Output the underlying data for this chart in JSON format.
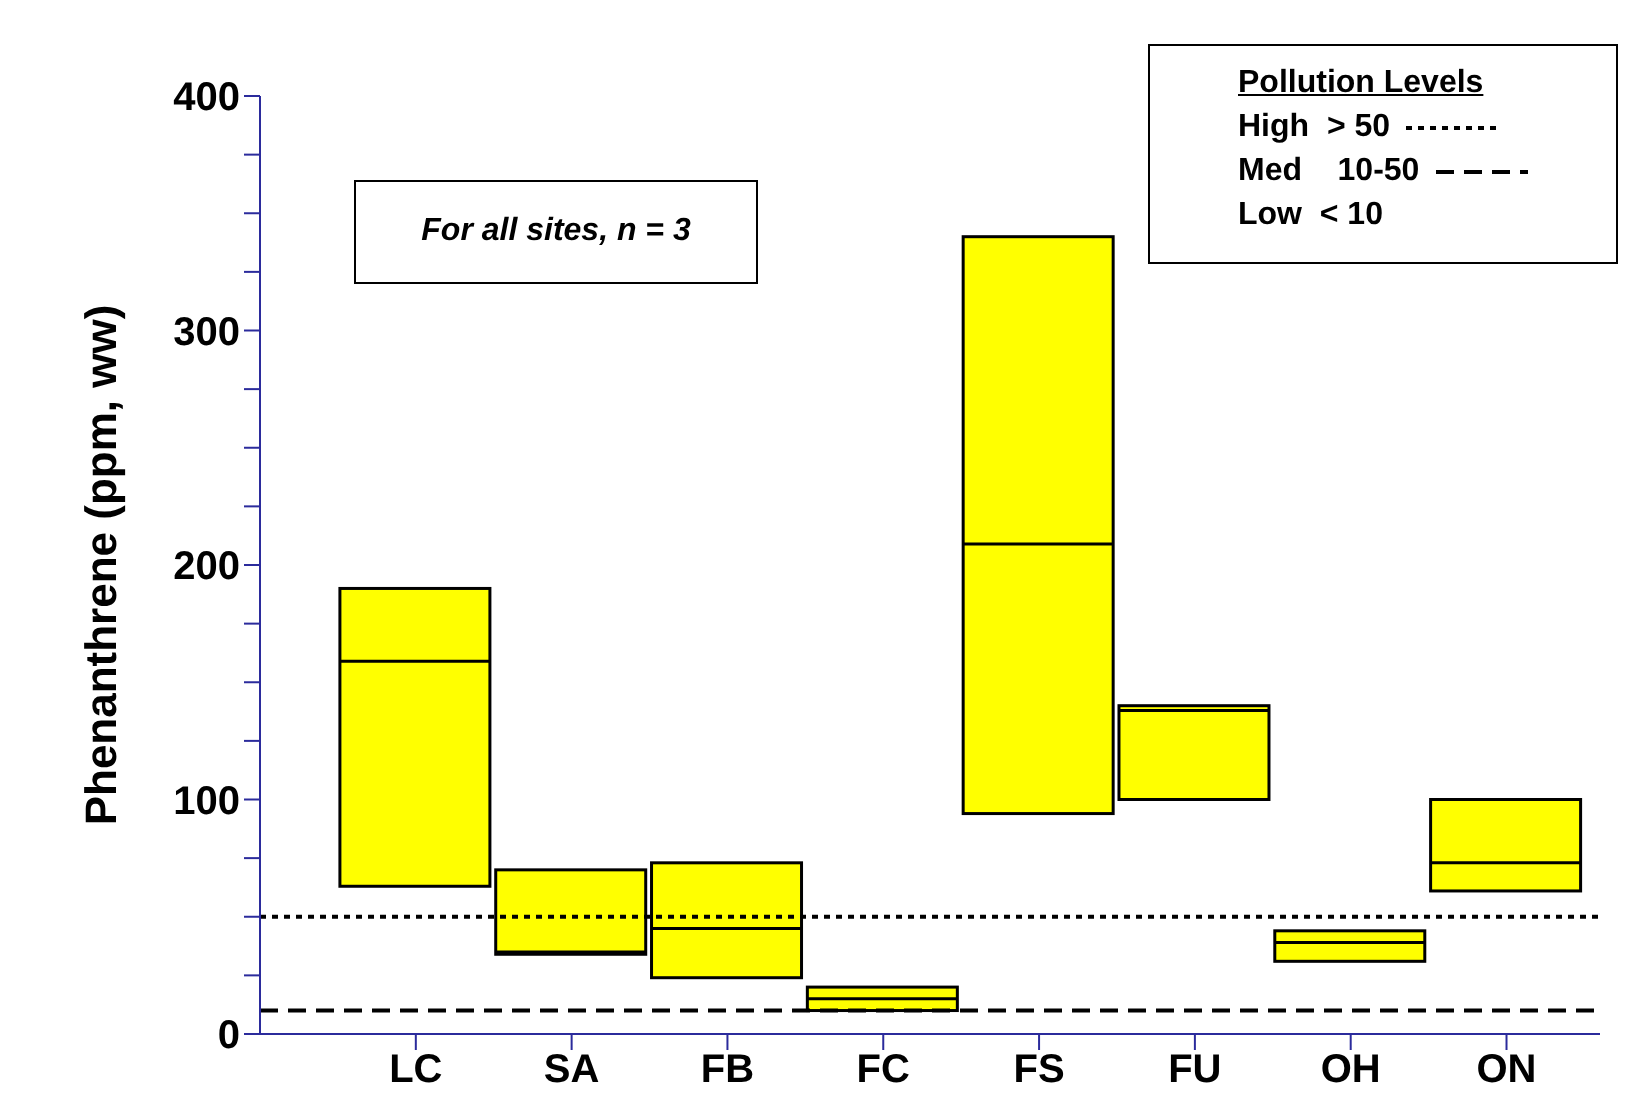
{
  "chart_data": {
    "type": "box",
    "ylabel": "Phenanthrene (ppm, ww)",
    "categories": [
      "LC",
      "SA",
      "FB",
      "FC",
      "FS",
      "FU",
      "OH",
      "ON"
    ],
    "boxes": [
      {
        "low": 63,
        "q1": 63,
        "median": 159,
        "q3": 190,
        "high": 190
      },
      {
        "low": 34,
        "q1": 34,
        "median": 35,
        "q3": 70,
        "high": 70
      },
      {
        "low": 24,
        "q1": 24,
        "median": 45,
        "q3": 73,
        "high": 73
      },
      {
        "low": 10,
        "q1": 10,
        "median": 15,
        "q3": 20,
        "high": 20
      },
      {
        "low": 94,
        "q1": 94,
        "median": 209,
        "q3": 340,
        "high": 340
      },
      {
        "low": 100,
        "q1": 100,
        "median": 138,
        "q3": 140,
        "high": 140
      },
      {
        "low": 31,
        "q1": 31,
        "median": 39,
        "q3": 44,
        "high": 44
      },
      {
        "low": 61,
        "q1": 61,
        "median": 73,
        "q3": 100,
        "high": 100
      }
    ],
    "color": "#ffff00",
    "ylim": [
      0,
      400
    ],
    "yticks": [
      0,
      {
        "value": 25,
        "label": null
      },
      {
        "value": 50,
        "label": null
      },
      {
        "value": 75,
        "label": null
      },
      100,
      {
        "value": 125,
        "label": null
      },
      {
        "value": 150,
        "label": null
      },
      {
        "value": 175,
        "label": null
      },
      200,
      {
        "value": 225,
        "label": null
      },
      {
        "value": 250,
        "label": null
      },
      {
        "value": 275,
        "label": null
      },
      300,
      {
        "value": 325,
        "label": null
      },
      {
        "value": 350,
        "label": null
      },
      {
        "value": 375,
        "label": null
      },
      400
    ],
    "ref_lines": [
      {
        "axis": "y",
        "value": 50,
        "label": "High  > 50",
        "line_style": "dotted",
        "color": "#000000"
      },
      {
        "axis": "y",
        "value": 10,
        "label": "Med    10-50",
        "line_style": "dashed",
        "color": "#000000"
      }
    ],
    "legend_title": "Pollution Levels",
    "legend": "top right",
    "annotations": [
      "For all sites, n = 3",
      "Low  < 10"
    ]
  }
}
